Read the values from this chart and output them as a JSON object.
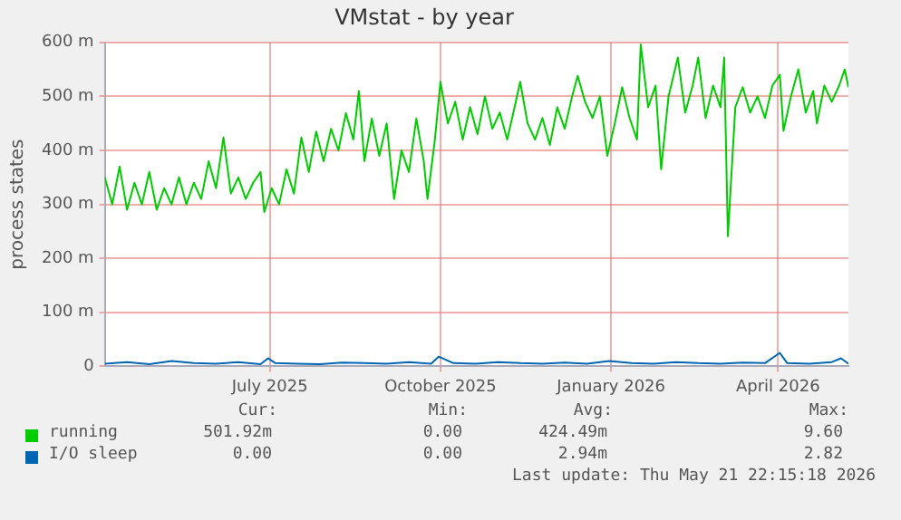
{
  "chart_data": {
    "type": "line",
    "title": "VMstat - by year",
    "ylabel": "process states",
    "xlim": [
      "2025-04-03",
      "2026-05-09"
    ],
    "xticks": [
      {
        "value": "2025-07-01",
        "label": "July 2025"
      },
      {
        "value": "2025-10-01",
        "label": "October 2025"
      },
      {
        "value": "2026-01-01",
        "label": "January 2026"
      },
      {
        "value": "2026-04-01",
        "label": "April 2026"
      }
    ],
    "ylim": [
      0,
      600
    ],
    "yticks": [
      0,
      {
        "value": 100,
        "label": "100 m"
      },
      {
        "value": 200,
        "label": "200 m"
      },
      {
        "value": 300,
        "label": "300 m"
      },
      {
        "value": 400,
        "label": "400 m"
      },
      {
        "value": 500,
        "label": "500 m"
      },
      {
        "value": 600,
        "label": "600 m"
      }
    ],
    "grid": true,
    "legend": "bottom",
    "marker": "none",
    "line_style": "solid",
    "series": [
      {
        "name": "running",
        "color": "#00cc00",
        "x": [
          "2025-04-03",
          "2025-04-07",
          "2025-04-11",
          "2025-04-15",
          "2025-04-19",
          "2025-04-23",
          "2025-04-27",
          "2025-05-01",
          "2025-05-05",
          "2025-05-09",
          "2025-05-13",
          "2025-05-17",
          "2025-05-21",
          "2025-05-25",
          "2025-05-29",
          "2025-06-02",
          "2025-06-06",
          "2025-06-10",
          "2025-06-14",
          "2025-06-18",
          "2025-06-22",
          "2025-06-26",
          "2025-06-28",
          "2025-07-02",
          "2025-07-06",
          "2025-07-10",
          "2025-07-14",
          "2025-07-18",
          "2025-07-22",
          "2025-07-26",
          "2025-07-30",
          "2025-08-03",
          "2025-08-07",
          "2025-08-11",
          "2025-08-15",
          "2025-08-18",
          "2025-08-21",
          "2025-08-25",
          "2025-08-29",
          "2025-09-02",
          "2025-09-06",
          "2025-09-10",
          "2025-09-14",
          "2025-09-18",
          "2025-09-22",
          "2025-09-24",
          "2025-09-28",
          "2025-10-01",
          "2025-10-05",
          "2025-10-09",
          "2025-10-13",
          "2025-10-17",
          "2025-10-21",
          "2025-10-25",
          "2025-10-29",
          "2025-11-02",
          "2025-11-06",
          "2025-11-10",
          "2025-11-13",
          "2025-11-17",
          "2025-11-21",
          "2025-11-25",
          "2025-11-29",
          "2025-12-03",
          "2025-12-07",
          "2025-12-11",
          "2025-12-14",
          "2025-12-18",
          "2025-12-22",
          "2025-12-26",
          "2025-12-30",
          "2026-01-03",
          "2026-01-07",
          "2026-01-11",
          "2026-01-15",
          "2026-01-17",
          "2026-01-21",
          "2026-01-25",
          "2026-01-28",
          "2026-02-01",
          "2026-02-06",
          "2026-02-10",
          "2026-02-14",
          "2026-02-17",
          "2026-02-21",
          "2026-02-25",
          "2026-03-01",
          "2026-03-03",
          "2026-03-05",
          "2026-03-09",
          "2026-03-13",
          "2026-03-17",
          "2026-03-21",
          "2026-03-25",
          "2026-03-29",
          "2026-04-02",
          "2026-04-04",
          "2026-04-08",
          "2026-04-12",
          "2026-04-16",
          "2026-04-20",
          "2026-04-22",
          "2026-04-26",
          "2026-04-30",
          "2026-05-04",
          "2026-05-07",
          "2026-05-09"
        ],
        "values": [
          350,
          300,
          370,
          290,
          340,
          300,
          360,
          290,
          330,
          300,
          350,
          300,
          340,
          310,
          380,
          330,
          424,
          320,
          350,
          310,
          340,
          360,
          286,
          330,
          300,
          365,
          320,
          424,
          360,
          435,
          380,
          440,
          400,
          469,
          420,
          510,
          380,
          459,
          390,
          450,
          310,
          400,
          360,
          459,
          380,
          310,
          420,
          527,
          450,
          490,
          420,
          480,
          430,
          500,
          440,
          470,
          420,
          480,
          527,
          450,
          420,
          460,
          410,
          480,
          440,
          500,
          538,
          490,
          460,
          500,
          390,
          450,
          517,
          460,
          420,
          596,
          480,
          520,
          365,
          500,
          572,
          470,
          520,
          572,
          460,
          520,
          480,
          572,
          241,
          480,
          517,
          470,
          500,
          460,
          520,
          540,
          436,
          500,
          550,
          470,
          510,
          450,
          520,
          490,
          520,
          550,
          517
        ]
      },
      {
        "name": "I/O sleep",
        "color": "#0066b3",
        "x": [
          "2025-04-03",
          "2025-04-15",
          "2025-04-27",
          "2025-05-09",
          "2025-05-21",
          "2025-06-02",
          "2025-06-14",
          "2025-06-26",
          "2025-06-30",
          "2025-07-04",
          "2025-07-16",
          "2025-07-28",
          "2025-08-09",
          "2025-08-21",
          "2025-09-02",
          "2025-09-14",
          "2025-09-26",
          "2025-09-30",
          "2025-10-08",
          "2025-10-20",
          "2025-11-01",
          "2025-11-13",
          "2025-11-25",
          "2025-12-07",
          "2025-12-19",
          "2025-12-31",
          "2026-01-12",
          "2026-01-24",
          "2026-02-05",
          "2026-02-17",
          "2026-03-01",
          "2026-03-13",
          "2026-03-25",
          "2026-04-02",
          "2026-04-06",
          "2026-04-18",
          "2026-04-30",
          "2026-05-05",
          "2026-05-09"
        ],
        "values": [
          5,
          8,
          4,
          10,
          6,
          5,
          8,
          4,
          15,
          6,
          5,
          4,
          7,
          6,
          5,
          8,
          5,
          18,
          6,
          5,
          8,
          6,
          5,
          7,
          5,
          10,
          6,
          5,
          8,
          6,
          5,
          7,
          6,
          25,
          6,
          5,
          8,
          15,
          5
        ]
      }
    ],
    "annotations": [
      "Cur:",
      "Min:",
      "Avg:",
      "Max:",
      "501.92m",
      "0.00",
      "424.49m",
      "9.60",
      "0.00",
      "0.00",
      "2.94m",
      "2.82",
      "Last update: Thu May 21 22:15:18 2026"
    ]
  }
}
